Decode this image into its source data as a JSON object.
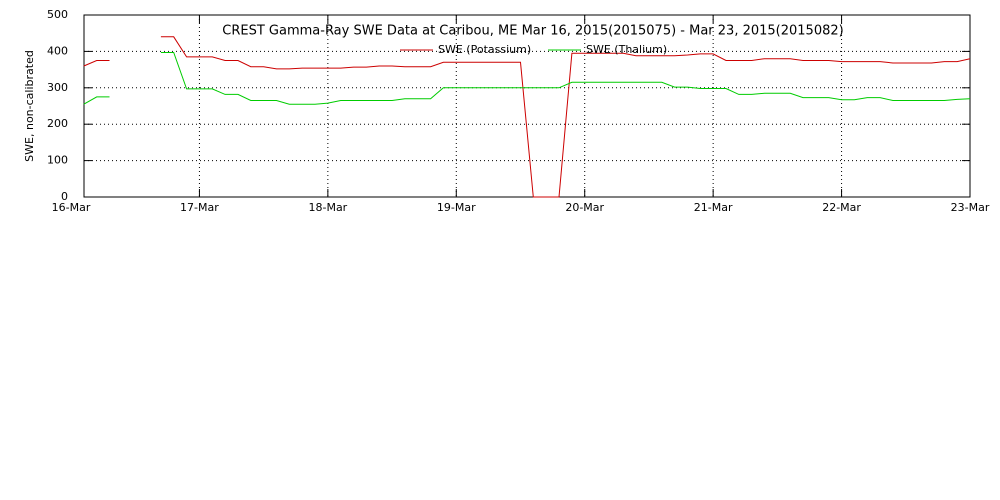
{
  "chart_data": {
    "type": "line",
    "title": "CREST Gamma-Ray SWE Data at Caribou, ME   Mar 16, 2015(2015075) - Mar 23, 2015(2015082)",
    "y_label": "SWE, non-calibrated",
    "x": [
      0.0,
      0.1,
      0.2,
      0.3,
      0.4,
      0.5,
      0.6,
      0.7,
      0.8,
      0.9,
      1.0,
      1.1,
      1.2,
      1.3,
      1.4,
      1.5,
      1.6,
      1.7,
      1.8,
      1.9,
      2.0,
      2.1,
      2.2,
      2.3,
      2.4,
      2.5,
      2.6,
      2.7,
      2.8,
      2.9,
      3.0,
      3.1,
      3.2,
      3.3,
      3.4,
      3.5,
      3.6,
      3.7,
      3.8,
      3.9,
      4.0,
      4.1,
      4.2,
      4.3,
      4.4,
      4.5,
      4.6,
      4.7,
      4.8,
      4.9,
      5.0,
      5.1,
      5.2,
      5.3,
      5.4,
      5.5,
      5.6,
      5.7,
      5.8,
      5.9,
      6.0,
      6.1,
      6.2,
      6.3,
      6.4,
      6.5,
      6.6,
      6.7,
      6.8,
      6.9,
      7.0
    ],
    "series": [
      {
        "name": "SWE (Potassium)",
        "color": "#cc0000",
        "values": [
          null,
          360,
          375,
          375,
          null,
          null,
          null,
          440,
          440,
          385,
          385,
          385,
          375,
          375,
          358,
          358,
          352,
          352,
          354,
          354,
          354,
          354,
          357,
          357,
          360,
          360,
          358,
          358,
          358,
          370,
          370,
          370,
          370,
          370,
          370,
          370,
          0,
          0,
          0,
          395,
          395,
          395,
          395,
          395,
          388,
          388,
          388,
          388,
          390,
          393,
          393,
          375,
          375,
          375,
          380,
          380,
          380,
          375,
          375,
          375,
          372,
          372,
          372,
          372,
          368,
          368,
          368,
          368,
          372,
          372,
          380
        ]
      },
      {
        "name": "SWE (Thalium)",
        "color": "#00cc00",
        "values": [
          null,
          255,
          275,
          275,
          null,
          null,
          null,
          397,
          397,
          297,
          297,
          297,
          282,
          282,
          265,
          265,
          265,
          255,
          255,
          255,
          258,
          265,
          265,
          265,
          265,
          265,
          270,
          270,
          270,
          300,
          300,
          300,
          300,
          300,
          300,
          300,
          300,
          300,
          300,
          315,
          315,
          315,
          315,
          315,
          315,
          315,
          315,
          302,
          302,
          298,
          298,
          298,
          282,
          282,
          285,
          285,
          285,
          273,
          273,
          273,
          267,
          267,
          273,
          273,
          265,
          265,
          265,
          265,
          265,
          268,
          270
        ]
      }
    ],
    "xlim": [
      0,
      7
    ],
    "xticks": [
      {
        "value": 0,
        "label": "16-Mar"
      },
      {
        "value": 1,
        "label": "17-Mar"
      },
      {
        "value": 2,
        "label": "18-Mar"
      },
      {
        "value": 3,
        "label": "19-Mar"
      },
      {
        "value": 4,
        "label": "20-Mar"
      },
      {
        "value": 5,
        "label": "21-Mar"
      },
      {
        "value": 6,
        "label": "22-Mar"
      },
      {
        "value": 7,
        "label": "23-Mar"
      }
    ],
    "ylim": [
      0,
      500
    ],
    "yticks": [
      0,
      100,
      200,
      300,
      400,
      500
    ],
    "grid": true
  }
}
